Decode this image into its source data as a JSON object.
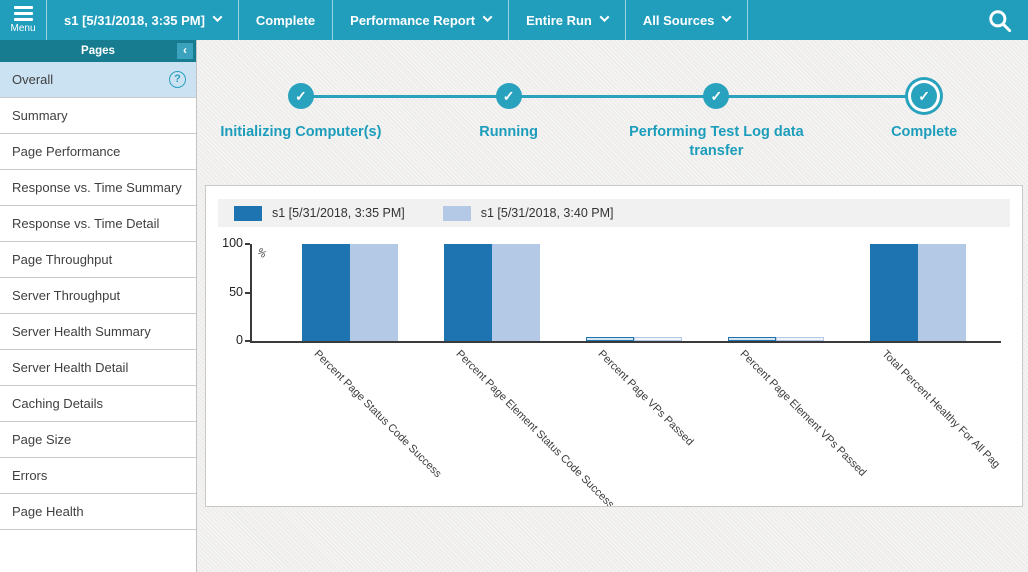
{
  "topbar": {
    "menu_label": "Menu",
    "items": [
      {
        "name": "run-selector-dropdown",
        "label": "s1 [5/31/2018, 3:35 PM]",
        "has_chevron": true,
        "interactable": true
      },
      {
        "name": "run-status",
        "label": "Complete",
        "has_chevron": false,
        "interactable": false
      },
      {
        "name": "report-type-dropdown",
        "label": "Performance Report",
        "has_chevron": true,
        "interactable": true
      },
      {
        "name": "time-range-dropdown",
        "label": "Entire Run",
        "has_chevron": true,
        "interactable": true
      },
      {
        "name": "sources-dropdown",
        "label": "All Sources",
        "has_chevron": true,
        "interactable": true
      }
    ],
    "colors": {
      "background": "#229EBD",
      "text": "#FFFFFF"
    }
  },
  "sidebar": {
    "header": {
      "title": "Pages",
      "collapse_glyph": "‹"
    },
    "help_glyph": "?",
    "items": [
      {
        "name": "sidebar-item-overall",
        "label": "Overall",
        "selected": true,
        "has_help": true
      },
      {
        "name": "sidebar-item-summary",
        "label": "Summary"
      },
      {
        "name": "sidebar-item-page-performance",
        "label": "Page Performance"
      },
      {
        "name": "sidebar-item-response-vs-time-summary",
        "label": "Response vs. Time Summary"
      },
      {
        "name": "sidebar-item-response-vs-time-detail",
        "label": "Response vs. Time Detail"
      },
      {
        "name": "sidebar-item-page-throughput",
        "label": "Page Throughput"
      },
      {
        "name": "sidebar-item-server-throughput",
        "label": "Server Throughput"
      },
      {
        "name": "sidebar-item-server-health-summary",
        "label": "Server Health Summary"
      },
      {
        "name": "sidebar-item-server-health-detail",
        "label": "Server Health Detail"
      },
      {
        "name": "sidebar-item-caching-details",
        "label": "Caching Details"
      },
      {
        "name": "sidebar-item-page-size",
        "label": "Page Size"
      },
      {
        "name": "sidebar-item-errors",
        "label": "Errors"
      },
      {
        "name": "sidebar-item-page-health",
        "label": "Page Health"
      }
    ],
    "colors": {
      "header_bg": "#177C90",
      "selected_bg": "#CBE2F2"
    }
  },
  "progress": {
    "check_glyph": "✓",
    "color": "#29A2BE",
    "steps": [
      {
        "label": "Initializing Computer(s)",
        "state": "done",
        "current": false
      },
      {
        "label": "Running",
        "state": "done",
        "current": false
      },
      {
        "label": "Performing Test Log data transfer",
        "state": "done",
        "current": false
      },
      {
        "label": "Complete",
        "state": "done",
        "current": true
      }
    ]
  },
  "chart_data": {
    "type": "bar",
    "title": "",
    "categories": [
      "Percent Page Status Code Success",
      "Percent Page Element Status Code Success",
      "Percent Page VPs Passed",
      "Percent Page Element VPs Passed",
      "Total Percent Healthy For All Pag"
    ],
    "series": [
      {
        "name": "s1 [5/31/2018, 3:35 PM]",
        "color": "#1E74B0",
        "values": [
          100,
          100,
          2,
          2,
          100
        ]
      },
      {
        "name": "s1 [5/31/2018, 3:40 PM]",
        "color": "#B3C9E6",
        "values": [
          100,
          100,
          2,
          2,
          100
        ]
      }
    ],
    "xlabel": "",
    "ylabel": "%",
    "yticks": [
      0,
      50,
      100
    ],
    "ylim": [
      0,
      100
    ],
    "grid": false,
    "legend_position": "top-left"
  }
}
